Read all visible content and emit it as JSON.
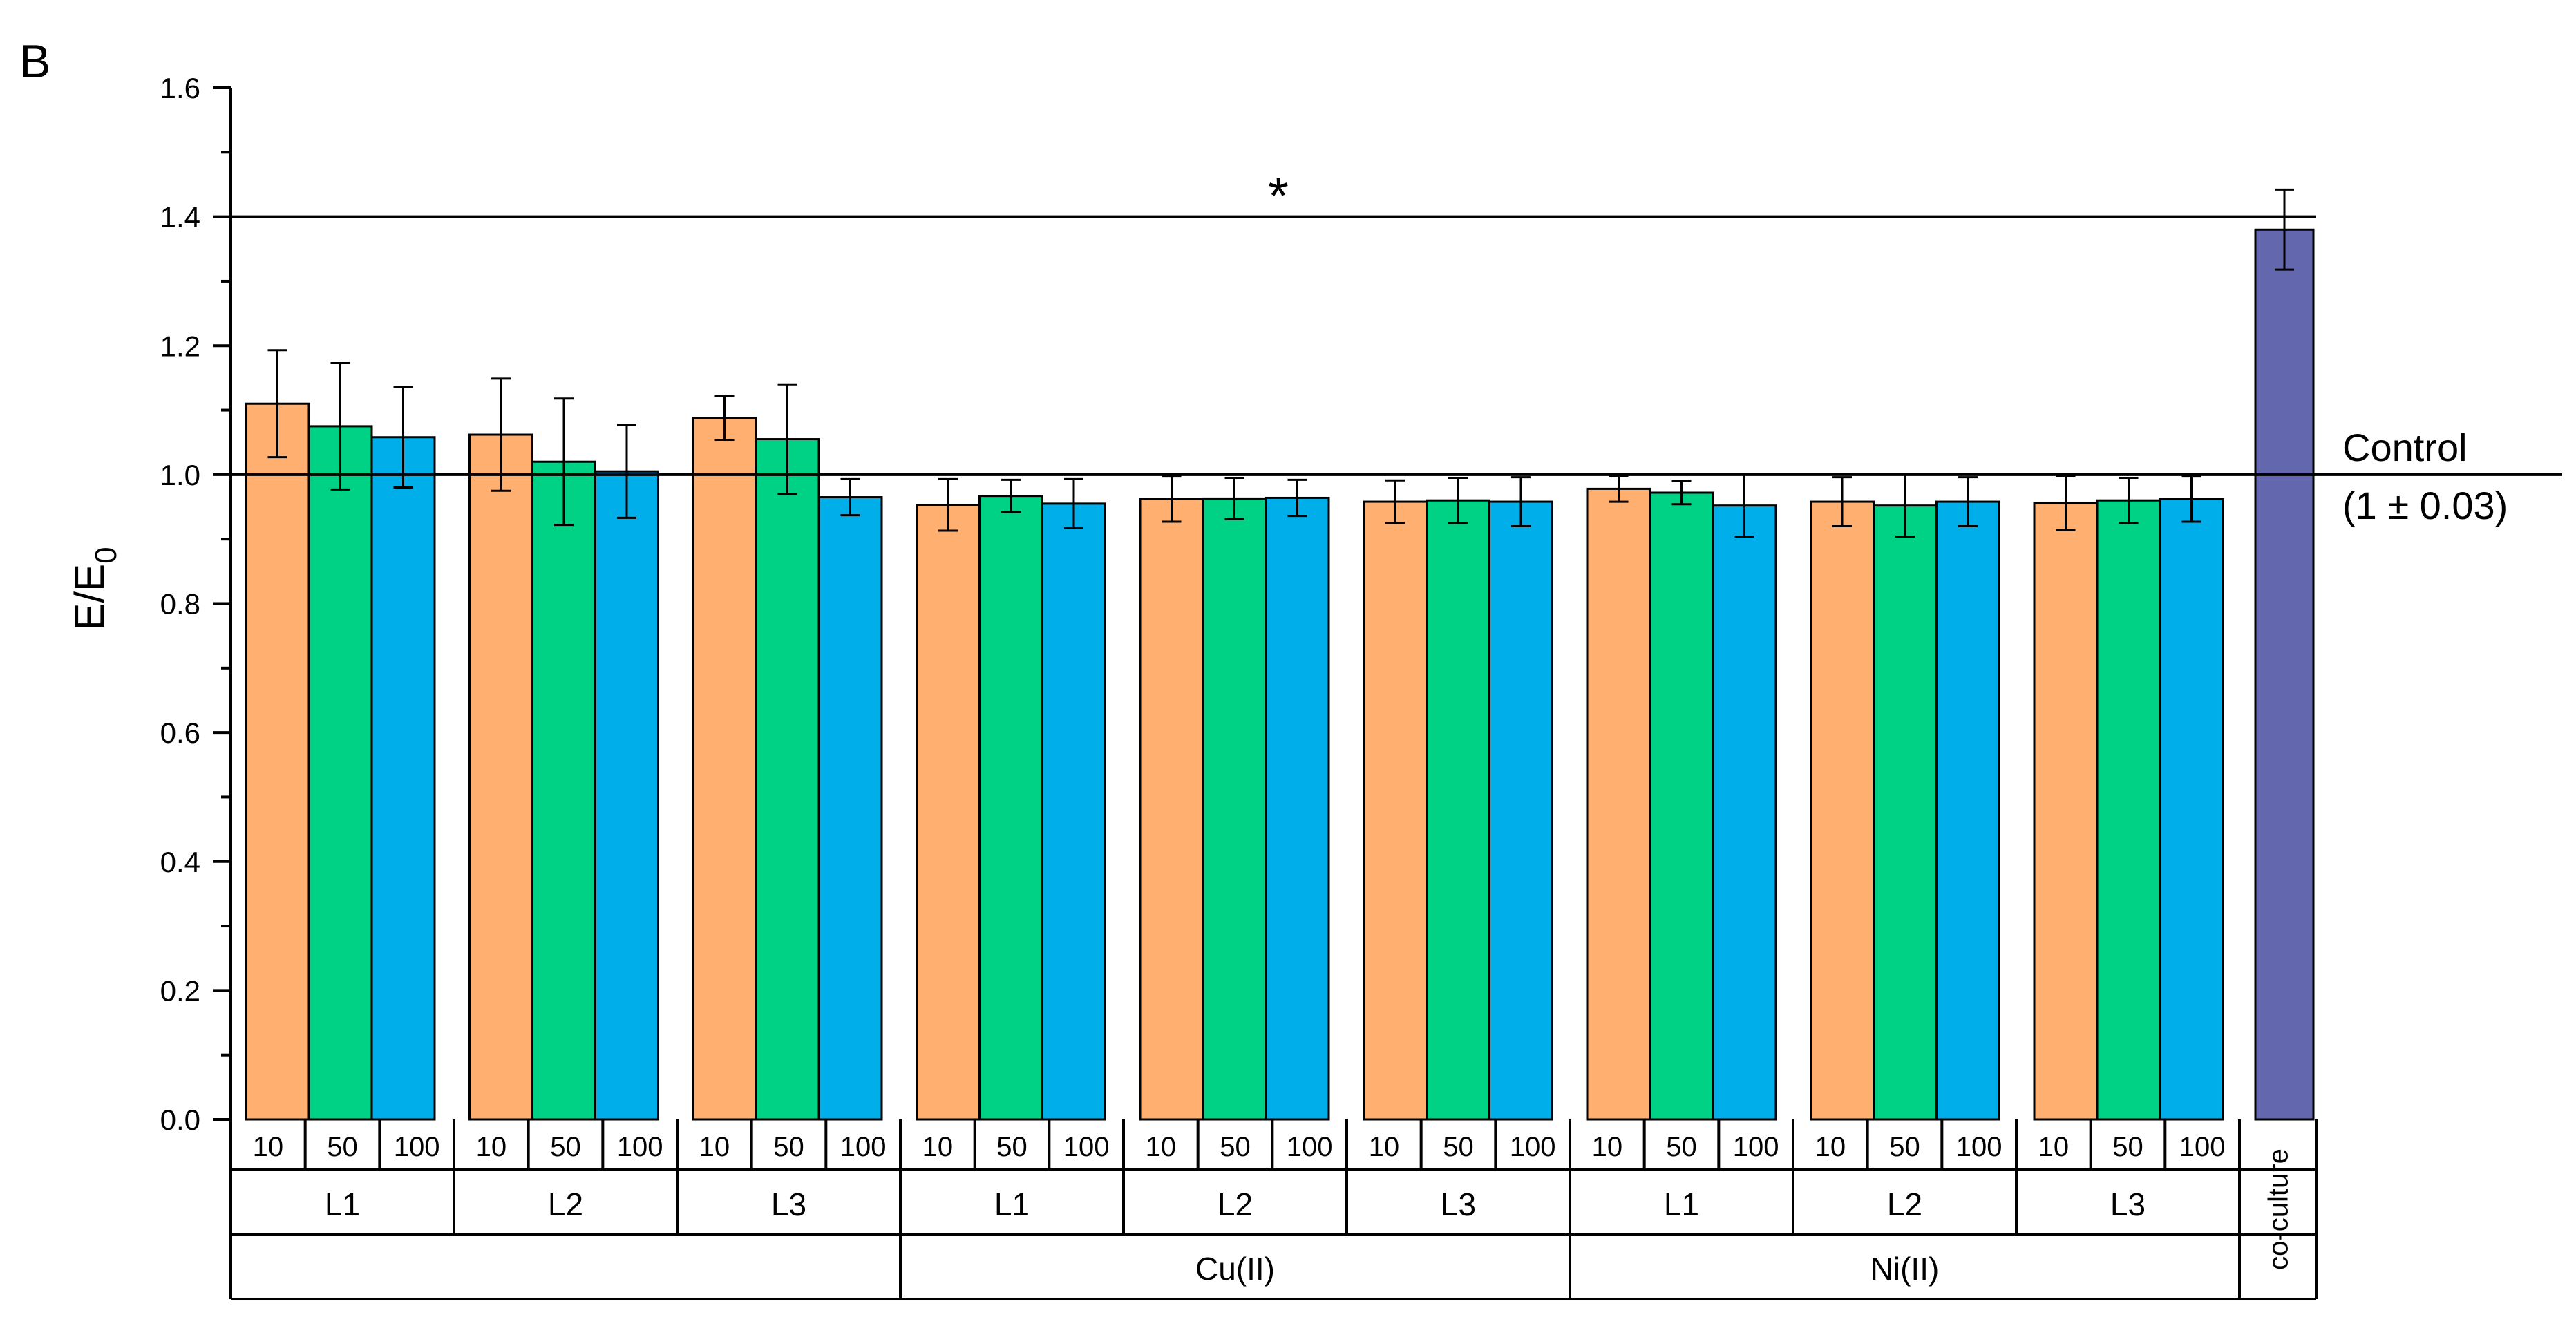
{
  "chart_data": {
    "type": "bar",
    "panel_label": "B",
    "ylabel": {
      "main": "E/E",
      "subscript": "0"
    },
    "ylim": [
      0,
      1.6
    ],
    "yticks": [
      "0.0",
      "0.2",
      "0.4",
      "0.6",
      "0.8",
      "1.0",
      "1.2",
      "1.4",
      "1.6"
    ],
    "ytick_values": [
      0,
      0.2,
      0.4,
      0.6,
      0.8,
      1.0,
      1.2,
      1.4,
      1.6
    ],
    "concentration_labels": [
      "10",
      "50",
      "100"
    ],
    "groups": [
      {
        "metal": "",
        "ligand": "L1",
        "values": [
          1.11,
          1.075,
          1.058
        ],
        "errors": [
          0.083,
          0.098,
          0.078
        ]
      },
      {
        "metal": "",
        "ligand": "L2",
        "values": [
          1.062,
          1.02,
          1.005
        ],
        "errors": [
          0.087,
          0.098,
          0.072
        ]
      },
      {
        "metal": "",
        "ligand": "L3",
        "values": [
          1.088,
          1.055,
          0.965
        ],
        "errors": [
          0.034,
          0.085,
          0.028
        ]
      },
      {
        "metal": "Cu(II)",
        "ligand": "L1",
        "values": [
          0.953,
          0.967,
          0.955
        ],
        "errors": [
          0.04,
          0.025,
          0.038
        ]
      },
      {
        "metal": "Cu(II)",
        "ligand": "L2",
        "values": [
          0.962,
          0.963,
          0.964
        ],
        "errors": [
          0.035,
          0.032,
          0.028
        ]
      },
      {
        "metal": "Cu(II)",
        "ligand": "L3",
        "values": [
          0.958,
          0.96,
          0.958
        ],
        "errors": [
          0.033,
          0.035,
          0.038
        ]
      },
      {
        "metal": "Ni(II)",
        "ligand": "L1",
        "values": [
          0.978,
          0.972,
          0.952
        ],
        "errors": [
          0.02,
          0.018,
          0.048
        ]
      },
      {
        "metal": "Ni(II)",
        "ligand": "L2",
        "values": [
          0.958,
          0.952,
          0.958
        ],
        "errors": [
          0.038,
          0.048,
          0.038
        ]
      },
      {
        "metal": "Ni(II)",
        "ligand": "L3",
        "values": [
          0.956,
          0.96,
          0.962
        ],
        "errors": [
          0.042,
          0.035,
          0.035
        ]
      }
    ],
    "metal_labels": [
      "",
      "Cu(II)",
      "Ni(II)"
    ],
    "coculture": {
      "label": "co-culture",
      "value": 1.38,
      "error": 0.062
    },
    "series_colors": {
      "c10": "#FFB070",
      "c50": "#00D285",
      "c100": "#00AEEA",
      "coculture": "#6367AE"
    },
    "reference_lines": [
      {
        "value": 1.0,
        "label_line1": "Control",
        "label_line2": "(1 ± 0.03)"
      },
      {
        "value": 1.4,
        "marker": "*"
      }
    ]
  }
}
